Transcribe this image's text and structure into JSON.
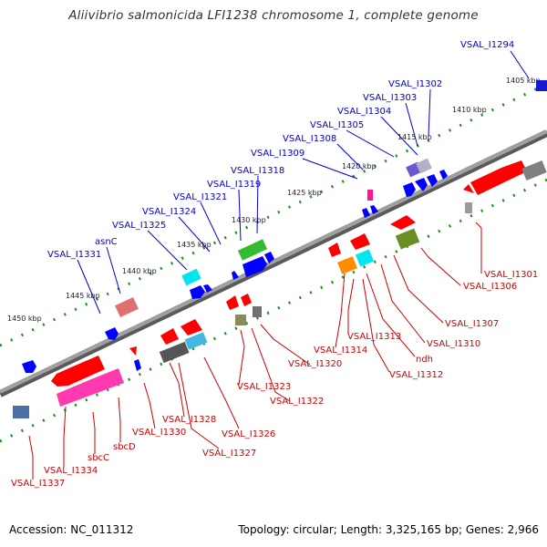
{
  "title": "Aliivibrio salmonicida LFI1238 chromosome 1, complete genome",
  "accession": "Accession: NC_011312",
  "summary": "Topology: circular; Length: 3,325,165 bp; Genes: 2,966",
  "colors": {
    "upper_label": "#0000cc",
    "lower_label": "#cc0000",
    "forward_gene": "#0000ff",
    "reverse_gene": "#ff0000",
    "backbone": "#8a8a8a",
    "ruler_dot": "#1a8f1a"
  },
  "kbp_labels": [
    "1405 kbp",
    "1410 kbp",
    "1415 kbp",
    "1420 kbp",
    "1425 kbp",
    "1430 kbp",
    "1435 kbp",
    "1440 kbp",
    "1445 kbp",
    "1450 kbp"
  ],
  "upper_genes": [
    "VSAL_I1294",
    "VSAL_I1302",
    "VSAL_I1303",
    "VSAL_I1304",
    "VSAL_I1305",
    "VSAL_I1308",
    "VSAL_I1309",
    "VSAL_I1318",
    "VSAL_I1319",
    "VSAL_I1321",
    "VSAL_I1324",
    "VSAL_I1325",
    "asnC",
    "VSAL_I1331"
  ],
  "lower_genes": [
    "VSAL_I1301",
    "VSAL_I1306",
    "VSAL_I1307",
    "VSAL_I1310",
    "ndh",
    "VSAL_I1312",
    "VSAL_I1313",
    "VSAL_I1314",
    "VSAL_I1320",
    "VSAL_I1322",
    "VSAL_I1323",
    "VSAL_I1326",
    "VSAL_I1327",
    "VSAL_I1328",
    "VSAL_I1330",
    "sbcD",
    "sbcC",
    "VSAL_I1334",
    "VSAL_I1337"
  ]
}
